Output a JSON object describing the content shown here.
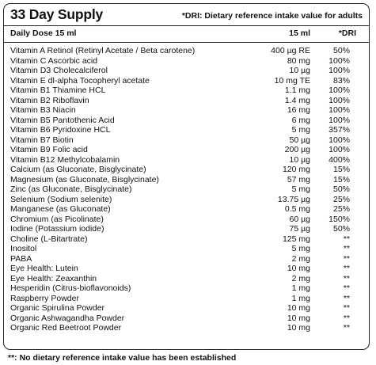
{
  "title": "33 Day Supply",
  "dri_note": "*DRI: Dietary reference intake value for adults",
  "header": {
    "dose": "Daily Dose  15 ml",
    "amount": "15 ml",
    "dri": "*DRI"
  },
  "rows": [
    {
      "name": "Vitamin A Retinol (Retinyl Acetate / Beta carotene)",
      "amount": "400 µg RE",
      "dri": "50%"
    },
    {
      "name": "Vitamin C Ascorbic acid",
      "amount": "80 mg",
      "dri": "100%"
    },
    {
      "name": "Vitamin D3 Cholecalciferol",
      "amount": "10 µg",
      "dri": "100%"
    },
    {
      "name": "Vitamin E dl-alpha Tocopheryl acetate",
      "amount": "10 mg TE",
      "dri": "83%"
    },
    {
      "name": "Vitamin B1 Thiamine HCL",
      "amount": "1.1 mg",
      "dri": "100%"
    },
    {
      "name": "Vitamin B2 Riboflavin",
      "amount": "1.4 mg",
      "dri": "100%"
    },
    {
      "name": "Vitamin B3 Niacin",
      "amount": "16 mg",
      "dri": "100%"
    },
    {
      "name": "Vitamin B5 Pantothenic Acid",
      "amount": "6 mg",
      "dri": "100%"
    },
    {
      "name": "Vitamin B6 Pyridoxine HCL",
      "amount": "5 mg",
      "dri": "357%"
    },
    {
      "name": "Vitamin B7 Biotin",
      "amount": "50 µg",
      "dri": "100%"
    },
    {
      "name": "Vitamin B9 Folic acid",
      "amount": "200 µg",
      "dri": "100%"
    },
    {
      "name": "Vitamin B12 Methylcobalamin",
      "amount": "10 µg",
      "dri": "400%"
    },
    {
      "name": "Calcium (as Gluconate, Bisglycinate)",
      "amount": "120 mg",
      "dri": "15%"
    },
    {
      "name": "Magnesium (as Gluconate, Bisglycinate)",
      "amount": "57 mg",
      "dri": "15%"
    },
    {
      "name": "Zinc (as Gluconate, Bisglycinate)",
      "amount": "5 mg",
      "dri": "50%"
    },
    {
      "name": "Selenium (Sodium selenite)",
      "amount": "13.75 µg",
      "dri": "25%"
    },
    {
      "name": "Manganese (as Gluconate)",
      "amount": "0.5 mg",
      "dri": "25%"
    },
    {
      "name": "Chromium (as Picolinate)",
      "amount": "60 µg",
      "dri": "150%"
    },
    {
      "name": "Iodine (Potassium iodide)",
      "amount": "75 µg",
      "dri": "50%"
    },
    {
      "name": "Choline (L-Bitartrate)",
      "amount": "125 mg",
      "dri": "**"
    },
    {
      "name": "Inositol",
      "amount": "5 mg",
      "dri": "**"
    },
    {
      "name": "PABA",
      "amount": "2 mg",
      "dri": "**"
    },
    {
      "name": "Eye Health: Lutein",
      "amount": "10 mg",
      "dri": "**"
    },
    {
      "name": "Eye Health: Zeaxanthin",
      "amount": "2 mg",
      "dri": "**"
    },
    {
      "name": "Hesperidin (Citrus-bioflavonoids)",
      "amount": "1 mg",
      "dri": "**"
    },
    {
      "name": "Raspberry Powder",
      "amount": "1 mg",
      "dri": "**"
    },
    {
      "name": "Organic Spirulina Powder",
      "amount": "10 mg",
      "dri": "**"
    },
    {
      "name": "Organic Ashwagandha Powder",
      "amount": "10 mg",
      "dri": "**"
    },
    {
      "name": "Organic Red Beetroot Powder",
      "amount": "10 mg",
      "dri": "**"
    }
  ],
  "footnote": "**: No dietary reference intake value has been established"
}
